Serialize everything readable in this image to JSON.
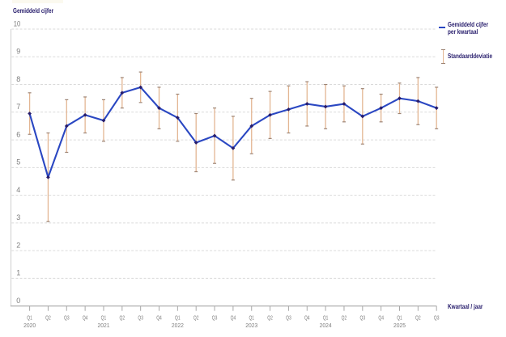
{
  "title": "Gemiddeld cijfer",
  "x_axis_title": "Kwartaal / jaar",
  "legend": {
    "mean_label_line1": "Gemiddeld cijfer",
    "mean_label_line2": "per kwartaal",
    "sd_label": "Standaarddeviatie"
  },
  "colors": {
    "text_navy": "#271d6c",
    "line": "#2a47c2",
    "marker": "#271d6c",
    "error_bar": "#e3b693",
    "error_bar_cap": "#9c8373",
    "gridline": "#dadada",
    "axis_line_vertical": "#d6d6d6",
    "axis_line_horizontal": "#a8a8a8",
    "tick": "#a8a8a8",
    "axis_label": "#7d7d7d",
    "background": "#ffffff",
    "top_remnant": "#fbf9ef"
  },
  "chart_data": {
    "type": "line",
    "title": "Gemiddeld cijfer",
    "xlabel": "Kwartaal / jaar",
    "ylabel": "Gemiddeld cijfer",
    "ylim": [
      0,
      10
    ],
    "y_ticks": [
      0,
      1,
      2,
      3,
      4,
      5,
      6,
      7,
      8,
      9,
      10
    ],
    "grid": "horizontal dashed",
    "legend_position": "top-right",
    "x_tick_labels": [
      {
        "quarter": "Q1",
        "year": "2020"
      },
      {
        "quarter": "Q2"
      },
      {
        "quarter": "Q3"
      },
      {
        "quarter": "Q4"
      },
      {
        "quarter": "Q1",
        "year": "2021"
      },
      {
        "quarter": "Q2"
      },
      {
        "quarter": "Q3"
      },
      {
        "quarter": "Q4"
      },
      {
        "quarter": "Q1",
        "year": "2022"
      },
      {
        "quarter": "Q2"
      },
      {
        "quarter": "Q3"
      },
      {
        "quarter": "Q4"
      },
      {
        "quarter": "Q1",
        "year": "2023"
      },
      {
        "quarter": "Q2"
      },
      {
        "quarter": "Q3"
      },
      {
        "quarter": "Q4"
      },
      {
        "quarter": "Q1",
        "year": "2024"
      },
      {
        "quarter": "Q2"
      },
      {
        "quarter": "Q3"
      },
      {
        "quarter": "Q4"
      },
      {
        "quarter": "Q1",
        "year": "2025"
      },
      {
        "quarter": "Q2"
      },
      {
        "quarter": "Q3"
      }
    ],
    "categories": [
      "Q1 2020",
      "Q2 2020",
      "Q3 2020",
      "Q4 2020",
      "Q1 2021",
      "Q2 2021",
      "Q3 2021",
      "Q4 2021",
      "Q1 2022",
      "Q2 2022",
      "Q3 2022",
      "Q4 2022",
      "Q1 2023",
      "Q2 2023",
      "Q3 2023",
      "Q4 2023",
      "Q1 2024",
      "Q2 2024",
      "Q3 2024",
      "Q4 2024",
      "Q1 2025",
      "Q2 2025",
      "Q3 2025"
    ],
    "series": [
      {
        "name": "Gemiddeld cijfer per kwartaal",
        "type": "line",
        "values": [
          6.95,
          4.65,
          6.5,
          6.9,
          6.7,
          7.7,
          7.9,
          7.15,
          6.8,
          5.9,
          6.15,
          5.7,
          6.5,
          6.9,
          7.1,
          7.3,
          7.2,
          7.3,
          6.85,
          7.15,
          7.5,
          7.4,
          7.15
        ]
      },
      {
        "name": "Standaarddeviatie",
        "type": "error_bar",
        "values": [
          0.75,
          1.6,
          0.95,
          0.65,
          0.75,
          0.55,
          0.55,
          0.75,
          0.85,
          1.05,
          1.0,
          1.15,
          1.0,
          0.85,
          0.85,
          0.8,
          0.8,
          0.65,
          1.0,
          0.5,
          0.55,
          0.85,
          0.75
        ]
      }
    ]
  }
}
